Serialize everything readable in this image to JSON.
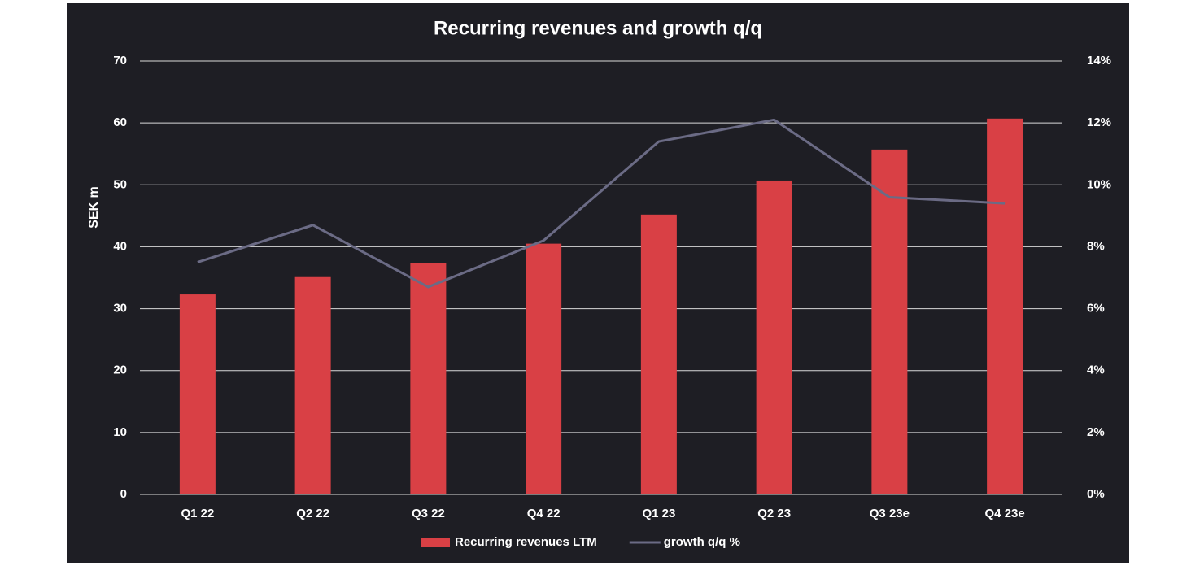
{
  "chart_data": {
    "type": "bar_line",
    "title": "Recurring revenues and growth q/q",
    "y_label": "SEK m",
    "categories": [
      "Q1 22",
      "Q2 22",
      "Q3 22",
      "Q4 22",
      "Q1 23",
      "Q2 23",
      "Q3 23e",
      "Q4 23e"
    ],
    "series": [
      {
        "name": "Recurring revenues LTM",
        "type": "bar",
        "color": "#d94045",
        "axis": "y",
        "values": [
          32.3,
          35.1,
          37.4,
          40.5,
          45.2,
          50.7,
          55.7,
          60.7
        ]
      },
      {
        "name": "growth q/q %",
        "type": "line",
        "color": "#6b6b85",
        "axis": "y2",
        "values": [
          7.5,
          8.7,
          6.7,
          8.2,
          11.4,
          12.1,
          9.6,
          9.4
        ]
      }
    ],
    "ylim": [
      0,
      70
    ],
    "yticks": [
      0,
      10,
      20,
      30,
      40,
      50,
      60,
      70
    ],
    "y2lim": [
      0,
      14
    ],
    "y2ticks": [
      {
        "value": 0,
        "label": "0%"
      },
      {
        "value": 2,
        "label": "2%"
      },
      {
        "value": 4,
        "label": "4%"
      },
      {
        "value": 6,
        "label": "6%"
      },
      {
        "value": 8,
        "label": "8%"
      },
      {
        "value": 10,
        "label": "10%"
      },
      {
        "value": 12,
        "label": "12%"
      },
      {
        "value": 14,
        "label": "14%"
      }
    ],
    "grid": true,
    "legend": "bottom"
  }
}
